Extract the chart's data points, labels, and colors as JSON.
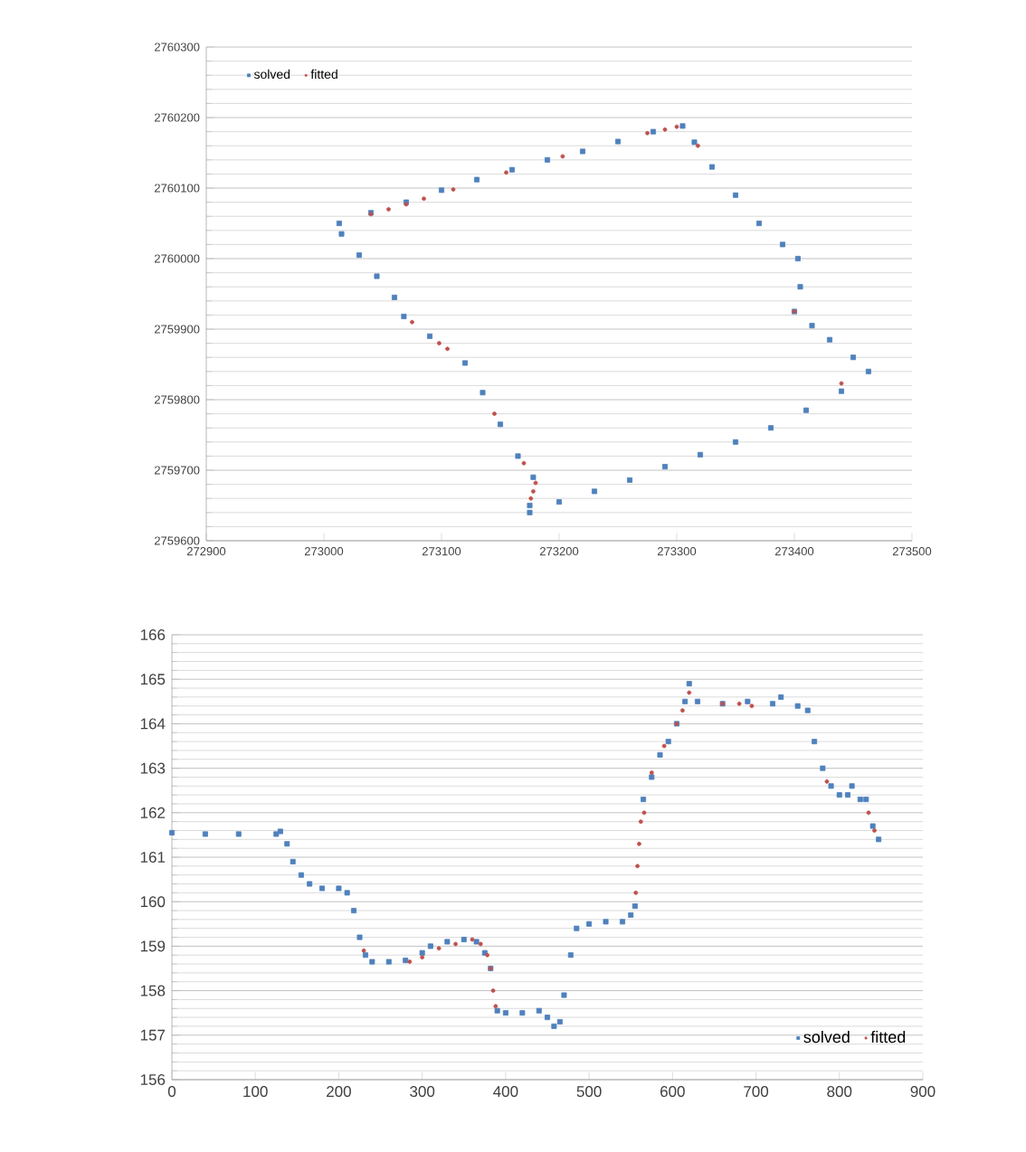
{
  "chart_data": [
    {
      "type": "scatter",
      "xlim": [
        272900,
        273500
      ],
      "ylim": [
        2759600,
        2760300
      ],
      "xticks": [
        272900,
        273000,
        273100,
        273200,
        273300,
        273400,
        273500
      ],
      "yticks": [
        2759600,
        2759700,
        2759800,
        2759900,
        2760000,
        2760100,
        2760200,
        2760300
      ],
      "grid": "y",
      "legend": "top left",
      "series": [
        {
          "name": "solved",
          "color": "#4f81bd",
          "marker": "square",
          "x": [
            273175,
            273200,
            273230,
            273260,
            273290,
            273320,
            273350,
            273380,
            273410,
            273440,
            273463,
            273450,
            273430,
            273415,
            273400,
            273405,
            273403,
            273390,
            273370,
            273350,
            273330,
            273315,
            273305,
            273280,
            273250,
            273220,
            273190,
            273160,
            273130,
            273100,
            273070,
            273040,
            273013,
            273015,
            273030,
            273045,
            273060,
            273068,
            273090,
            273120,
            273135,
            273150,
            273165,
            273178,
            273175
          ],
          "values": [
            2759640,
            2759655,
            2759670,
            2759686,
            2759705,
            2759722,
            2759740,
            2759760,
            2759785,
            2759812,
            2759840,
            2759860,
            2759885,
            2759905,
            2759925,
            2759960,
            2760000,
            2760020,
            2760050,
            2760090,
            2760130,
            2760165,
            2760188,
            2760180,
            2760166,
            2760152,
            2760140,
            2760126,
            2760112,
            2760097,
            2760080,
            2760065,
            2760050,
            2760035,
            2760005,
            2759975,
            2759945,
            2759918,
            2759890,
            2759852,
            2759810,
            2759765,
            2759720,
            2759690,
            2759650
          ]
        },
        {
          "name": "fitted",
          "color": "#c0504d",
          "marker": "circle",
          "x": [
            273040,
            273055,
            273070,
            273085,
            273110,
            273155,
            273203,
            273275,
            273290,
            273300,
            273318,
            273400,
            273440,
            273075,
            273098,
            273105,
            273145,
            273170,
            273180,
            273178,
            273176
          ],
          "values": [
            2760063,
            2760070,
            2760077,
            2760085,
            2760098,
            2760122,
            2760145,
            2760178,
            2760183,
            2760187,
            2760160,
            2759925,
            2759823,
            2759910,
            2759880,
            2759872,
            2759780,
            2759710,
            2759682,
            2759670,
            2759660
          ]
        }
      ]
    },
    {
      "type": "scatter",
      "xlim": [
        0,
        900
      ],
      "ylim": [
        156,
        166
      ],
      "xticks": [
        0,
        100,
        200,
        300,
        400,
        500,
        600,
        700,
        800,
        900
      ],
      "yticks": [
        156,
        157,
        158,
        159,
        160,
        161,
        162,
        163,
        164,
        165,
        166
      ],
      "grid": "y",
      "legend": "bottom right",
      "series": [
        {
          "name": "solved",
          "color": "#4f81bd",
          "marker": "square",
          "x": [
            0,
            40,
            80,
            125,
            130,
            138,
            145,
            155,
            165,
            180,
            200,
            210,
            218,
            225,
            232,
            240,
            260,
            280,
            300,
            310,
            330,
            350,
            365,
            375,
            382,
            390,
            400,
            420,
            440,
            450,
            458,
            465,
            470,
            478,
            485,
            500,
            520,
            540,
            550,
            555,
            565,
            575,
            585,
            595,
            605,
            615,
            620,
            630,
            660,
            690,
            720,
            730,
            750,
            762,
            770,
            780,
            790,
            800,
            810,
            815,
            825,
            832,
            840,
            847
          ],
          "values": [
            161.55,
            161.52,
            161.52,
            161.52,
            161.58,
            161.3,
            160.9,
            160.6,
            160.4,
            160.3,
            160.3,
            160.2,
            159.8,
            159.2,
            158.8,
            158.65,
            158.65,
            158.68,
            158.85,
            159.0,
            159.1,
            159.15,
            159.1,
            158.85,
            158.5,
            157.55,
            157.5,
            157.5,
            157.55,
            157.4,
            157.2,
            157.3,
            157.9,
            158.8,
            159.4,
            159.5,
            159.55,
            159.55,
            159.7,
            159.9,
            162.3,
            162.8,
            163.3,
            163.6,
            164.0,
            164.5,
            164.9,
            164.5,
            164.45,
            164.5,
            164.45,
            164.6,
            164.4,
            164.3,
            163.6,
            163.0,
            162.6,
            162.4,
            162.4,
            162.6,
            162.3,
            162.3,
            161.7,
            161.4
          ]
        },
        {
          "name": "fitted",
          "color": "#c0504d",
          "marker": "circle",
          "x": [
            230,
            285,
            300,
            320,
            340,
            360,
            370,
            378,
            382,
            385,
            388,
            556,
            558,
            560,
            562,
            566,
            575,
            590,
            605,
            612,
            620,
            660,
            680,
            695,
            785,
            835,
            842
          ],
          "values": [
            158.9,
            158.65,
            158.75,
            158.95,
            159.05,
            159.15,
            159.05,
            158.8,
            158.5,
            158.0,
            157.65,
            160.2,
            160.8,
            161.3,
            161.8,
            162.0,
            162.9,
            163.5,
            164.0,
            164.3,
            164.7,
            164.45,
            164.45,
            164.4,
            162.7,
            162.0,
            161.6
          ]
        }
      ]
    }
  ]
}
